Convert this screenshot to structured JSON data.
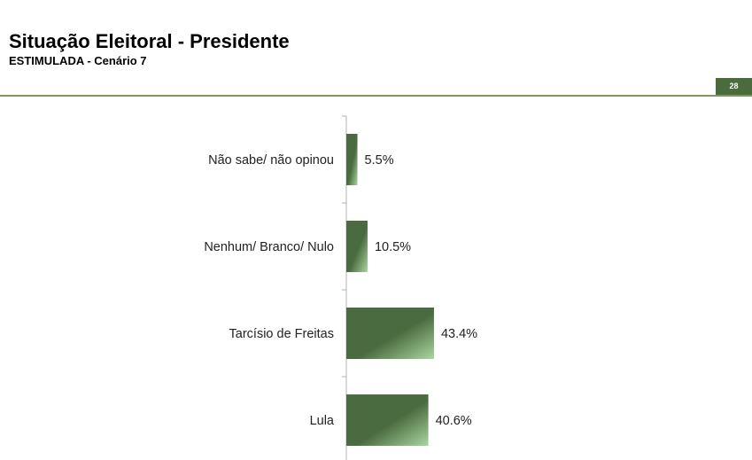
{
  "header": {
    "title": "Situação Eleitoral - Presidente",
    "subtitle": "ESTIMULADA - Cenário 7",
    "page_number": "28"
  },
  "colors": {
    "bar_dark": "#4a6b3f",
    "bar_light": "#a9d6a0",
    "rule": "#7d9a5e"
  },
  "chart_data": {
    "type": "bar",
    "orientation": "horizontal",
    "categories": [
      "Não sabe/ não opinou",
      "Nenhum/ Branco/ Nulo",
      "Tarcísio de Freitas",
      "Lula"
    ],
    "values": [
      5.5,
      10.5,
      43.4,
      40.6
    ],
    "labels": [
      "5.5%",
      "10.5%",
      "43.4%",
      "40.6%"
    ],
    "title": "",
    "xlabel": "",
    "ylabel": "",
    "xlim": [
      0,
      100
    ],
    "grid": false,
    "legend": "none"
  }
}
